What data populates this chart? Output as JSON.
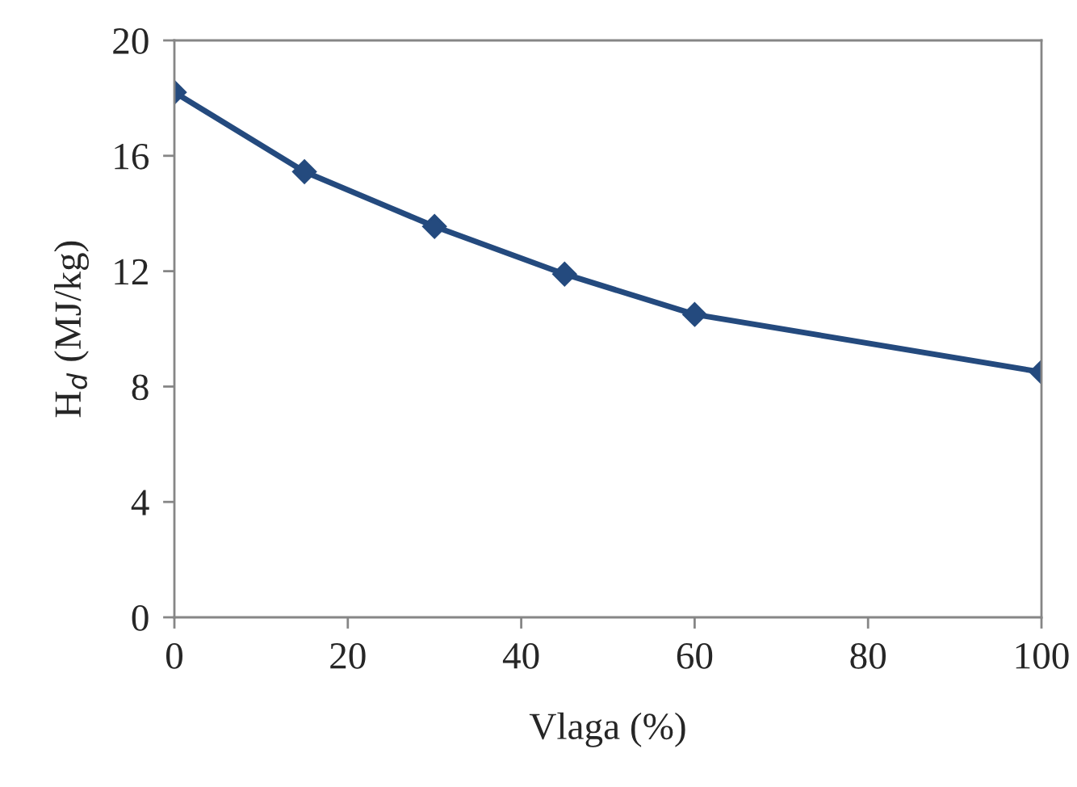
{
  "chart_data": {
    "type": "line",
    "xlabel": "Vlaga (%)",
    "ylabel": "H$_{d}$ (MJ/kg)",
    "x": [
      0,
      15,
      30,
      45,
      60,
      100
    ],
    "series": [
      {
        "color": "#244a7e",
        "values": [
          18.2,
          15.45,
          13.55,
          11.9,
          10.5,
          8.5
        ]
      }
    ],
    "xlim": [
      0,
      100
    ],
    "xticks": [
      0,
      20,
      40,
      60,
      80,
      100
    ],
    "ylim": [
      0,
      20
    ],
    "yticks": [
      0,
      4,
      8,
      12,
      16,
      20
    ],
    "marker": "diamond",
    "line_style": "solid",
    "grid": false,
    "legend": false
  }
}
